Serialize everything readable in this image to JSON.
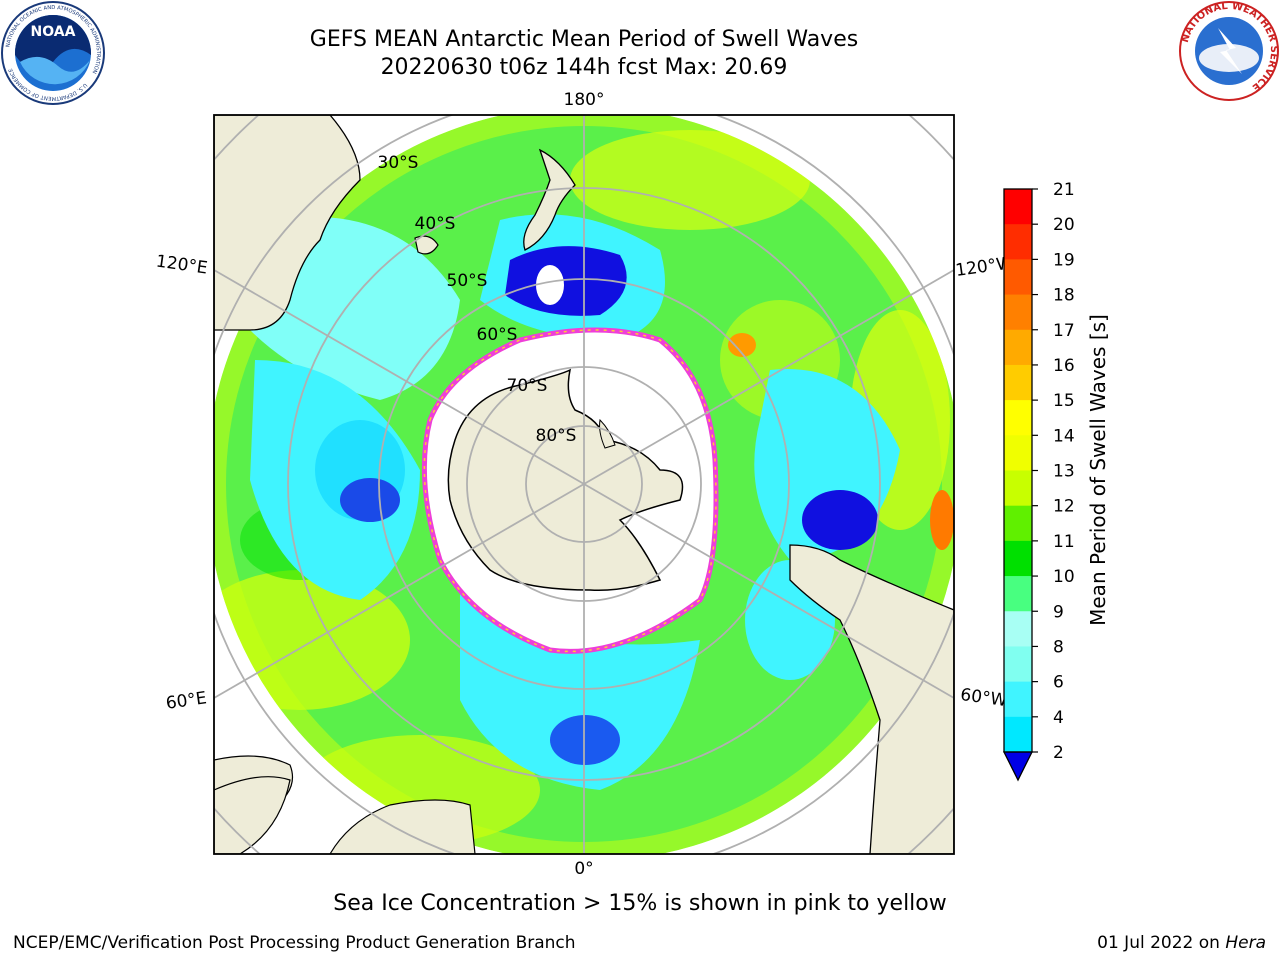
{
  "header": {
    "title_line1": "GEFS MEAN Antarctic Mean Period of Swell Waves",
    "title_line2": "20220630 t06z 144h fcst   Max: 20.69"
  },
  "logos": {
    "noaa_text": "NOAA",
    "noaa_ring_text": "NATIONAL OCEANIC AND ATMOSPHERIC ADMINISTRATION",
    "noaa_ring_bottom": "U.S. DEPARTMENT OF COMMERCE",
    "nws_ring_text": "NATIONAL WEATHER SERVICE"
  },
  "map": {
    "projection": "south-polar-stereographic",
    "longitude_labels": {
      "top": "180°",
      "bottom": "0°",
      "upper_left": "120°E",
      "upper_right": "120°W",
      "lower_left": "60°E",
      "lower_right": "60°W"
    },
    "latitude_labels": [
      "30°S",
      "40°S",
      "50°S",
      "60°S",
      "70°S",
      "80°S"
    ],
    "colors": {
      "land": "#eeecd8",
      "ice": "#ffffff",
      "ice_edge": "#ee3fd8",
      "grid": "#b0b0b0"
    }
  },
  "colorbar": {
    "label": "Mean Period of Swell Waves [s]",
    "ticks": [
      "21",
      "20",
      "19",
      "18",
      "17",
      "16",
      "15",
      "14",
      "13",
      "12",
      "11",
      "10",
      "9",
      "8",
      "6",
      "4",
      "2"
    ],
    "colors": [
      "#0000e6",
      "#0077ff",
      "#00e8ff",
      "#40f4ff",
      "#80fff0",
      "#a8fff4",
      "#48ff80",
      "#00e000",
      "#60f000",
      "#c8ff00",
      "#f0ff00",
      "#ffff00",
      "#ffcc00",
      "#ffaa00",
      "#ff8000",
      "#ff5a00",
      "#ff2d00",
      "#ff0000"
    ],
    "extend": "min"
  },
  "caption": "Sea Ice Concentration > 15% is shown in pink to yellow",
  "footer": {
    "left": "NCEP/EMC/Verification Post Processing Product Generation Branch",
    "date": "01 Jul 2022 on ",
    "machine": "Hera"
  }
}
